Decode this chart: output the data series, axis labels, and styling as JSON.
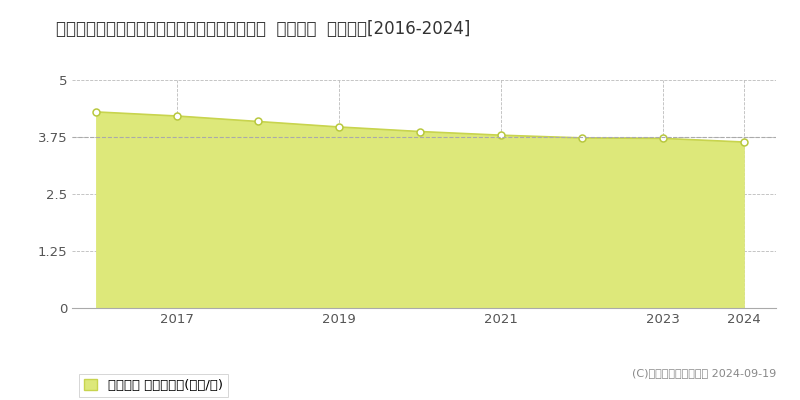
{
  "title": "北海道久遠郡せたな町北檜山区北檜山８３番２  基準地価  地価推移[2016-2024]",
  "years": [
    2016,
    2017,
    2018,
    2019,
    2020,
    2021,
    2022,
    2023,
    2024
  ],
  "values": [
    4.3,
    4.21,
    4.09,
    3.97,
    3.87,
    3.79,
    3.73,
    3.72,
    3.64
  ],
  "yticks": [
    0,
    1.25,
    2.5,
    3.75,
    5
  ],
  "ylim": [
    0,
    5
  ],
  "xlim": [
    2015.7,
    2024.4
  ],
  "xtick_labels": [
    "2017",
    "2019",
    "2021",
    "2023",
    "2024"
  ],
  "xtick_positions": [
    2017,
    2019,
    2021,
    2023,
    2024
  ],
  "line_color": "#c8d44e",
  "fill_color": "#dde87a",
  "fill_alpha": 1.0,
  "marker_facecolor": "#ffffff",
  "marker_edgecolor": "#b8c83e",
  "grid_color": "#bbbbbb",
  "background_color": "#ffffff",
  "legend_label": "基準地価 平均坪単価(万円/坪)",
  "copyright_text": "(C)土地価格ドットコム 2024-09-19",
  "title_fontsize": 12,
  "axis_fontsize": 9.5,
  "legend_fontsize": 9.5,
  "hline_y": 3.75,
  "hline_color": "#aaaaaa"
}
